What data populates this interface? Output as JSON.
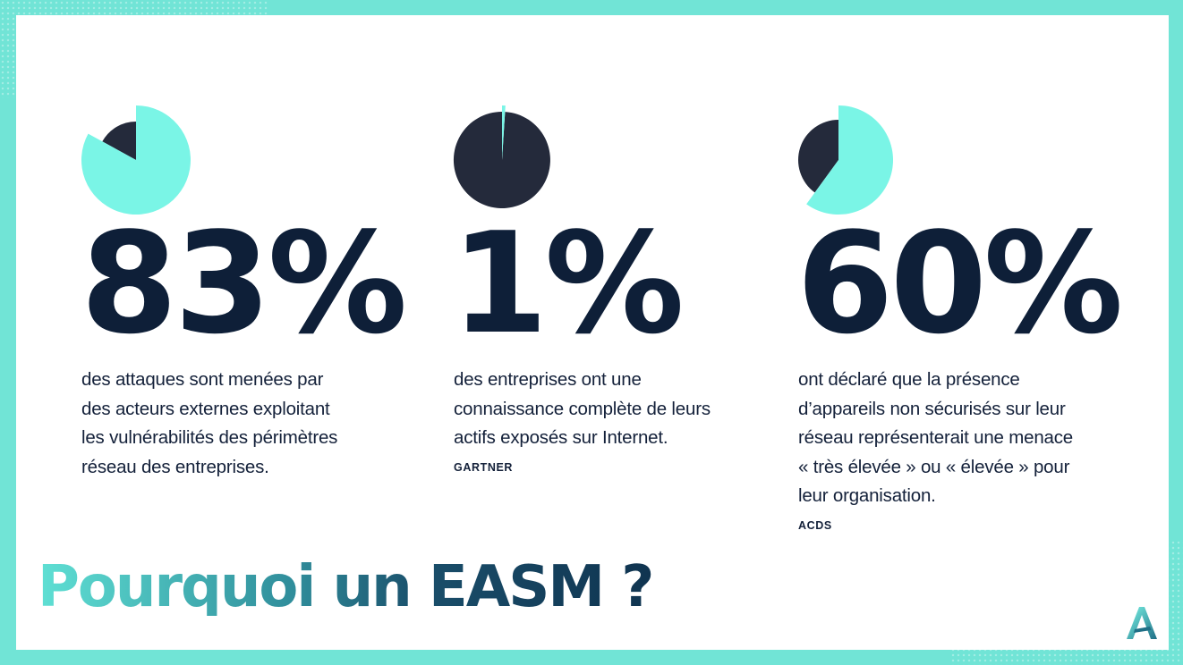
{
  "colors": {
    "frame": "#71e4d6",
    "accent": "#7af5e6",
    "dark": "#242a3b",
    "text": "#0e1f38"
  },
  "chart_data": [
    {
      "type": "pie",
      "values": [
        83,
        17
      ],
      "big_label": "83%",
      "description": [
        "des attaques sont menées par",
        "des acteurs externes exploitant",
        "les vulnérabilités des périmètres",
        "réseau des entreprises."
      ],
      "source": ""
    },
    {
      "type": "pie",
      "values": [
        1,
        99
      ],
      "big_label": "1%",
      "description": [
        "des entreprises ont une",
        "connaissance complète de leurs",
        "actifs exposés sur Internet."
      ],
      "source": "GARTNER"
    },
    {
      "type": "pie",
      "values": [
        60,
        40
      ],
      "big_label": "60%",
      "description": [
        "ont déclaré que la présence",
        "d’appareils non sécurisés sur leur",
        "réseau représenterait une menace",
        "« très élevée » ou « élevée » pour",
        "leur organisation."
      ],
      "source": "ACDS"
    }
  ],
  "title": "Pourquoi un EASM ?",
  "logo_icon": "a-letter-logo-icon"
}
